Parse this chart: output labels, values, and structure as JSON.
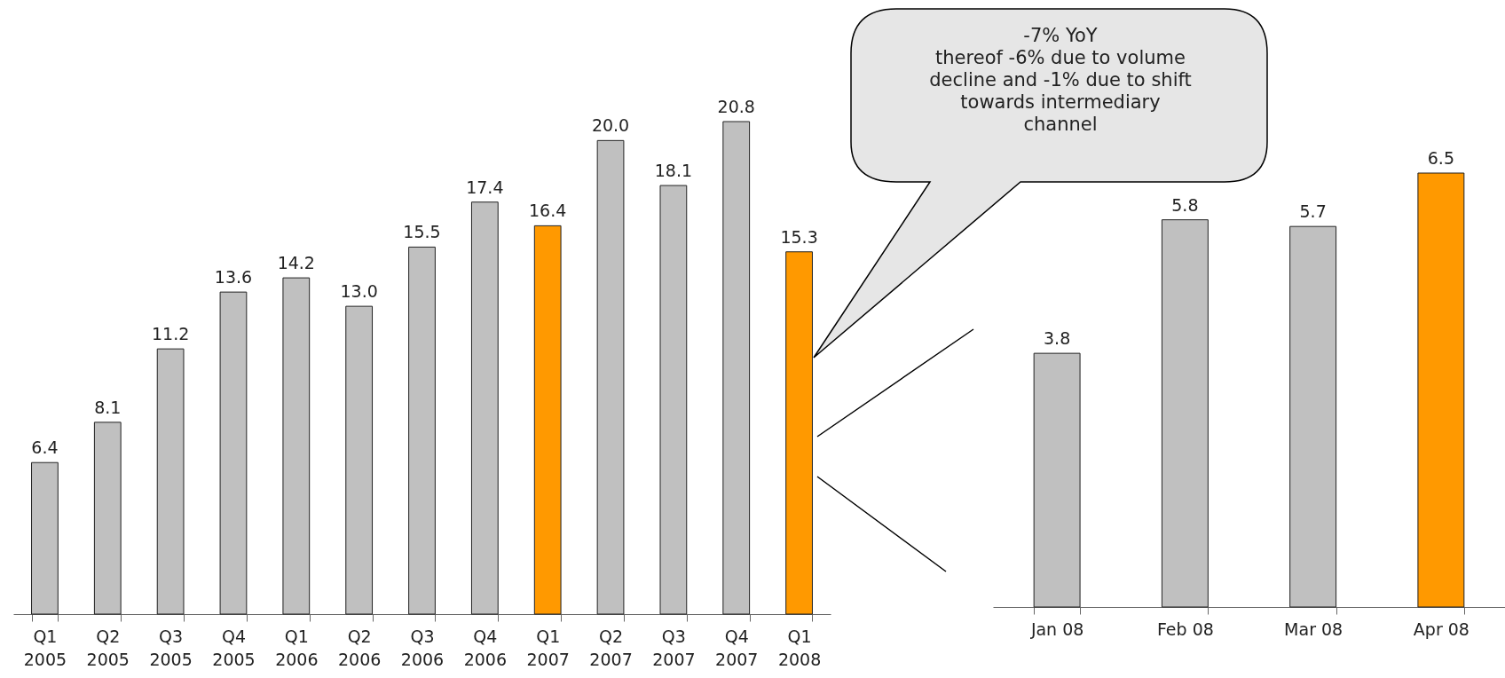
{
  "chart_data": [
    {
      "type": "bar",
      "categories": [
        "Q1 2005",
        "Q2 2005",
        "Q3 2005",
        "Q4 2005",
        "Q1 2006",
        "Q2 2006",
        "Q3 2006",
        "Q4 2006",
        "Q1 2007",
        "Q2 2007",
        "Q3 2007",
        "Q4 2007",
        "Q1 2008"
      ],
      "values": [
        6.4,
        8.1,
        11.2,
        13.6,
        14.2,
        13.0,
        15.5,
        17.4,
        16.4,
        20.0,
        18.1,
        20.8,
        15.3
      ],
      "colors": [
        "#c0c0c0",
        "#c0c0c0",
        "#c0c0c0",
        "#c0c0c0",
        "#c0c0c0",
        "#c0c0c0",
        "#c0c0c0",
        "#c0c0c0",
        "#ff9900",
        "#c0c0c0",
        "#c0c0c0",
        "#c0c0c0",
        "#ff9900"
      ],
      "value_labels": [
        "6.4",
        "8.1",
        "11.2",
        "13.6",
        "14.2",
        "13.0",
        "15.5",
        "17.4",
        "16.4",
        "20.0",
        "18.1",
        "20.8",
        "15.3"
      ],
      "tick_labels": "x",
      "grid": false,
      "annotations": [
        "-7% YoY\nthereof -6% due to volume\ndecline and -1% due to shift\ntowards intermediary\nchannel"
      ]
    },
    {
      "type": "bar",
      "categories": [
        "Jan 08",
        "Feb 08",
        "Mar 08",
        "Apr 08"
      ],
      "values": [
        3.8,
        5.8,
        5.7,
        6.5
      ],
      "colors": [
        "#c0c0c0",
        "#c0c0c0",
        "#c0c0c0",
        "#ff9900"
      ],
      "value_labels": [
        "3.8",
        "5.8",
        "5.7",
        "6.5"
      ],
      "tick_labels": "x",
      "grid": false
    }
  ]
}
